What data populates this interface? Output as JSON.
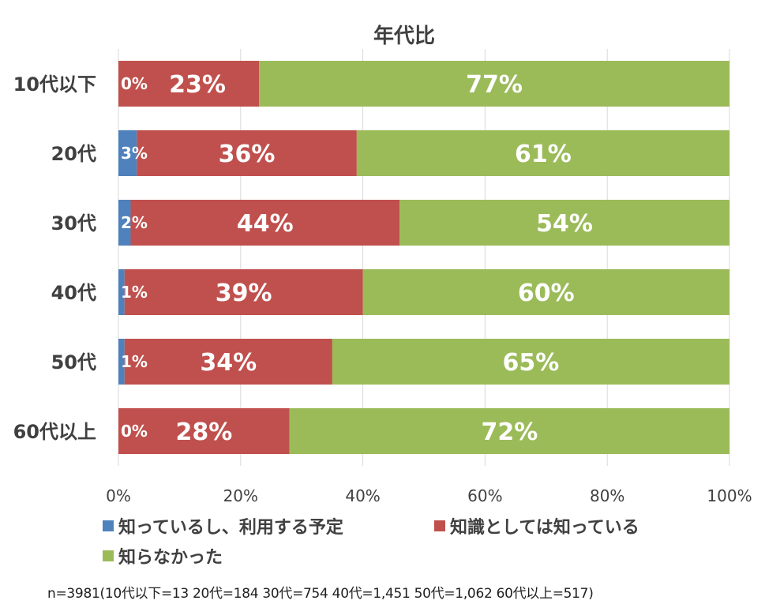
{
  "chart_data": {
    "type": "bar",
    "orientation": "horizontal",
    "stacked": "percent",
    "title": "年代比",
    "categories": [
      "10代以下",
      "20代",
      "30代",
      "40代",
      "50代",
      "60代以上"
    ],
    "series": [
      {
        "name": "知っているし、利用する予定",
        "color": "#4f81bd",
        "values": [
          0,
          3,
          2,
          1,
          1,
          0
        ]
      },
      {
        "name": "知識としては知っている",
        "color": "#c0504d",
        "values": [
          23,
          36,
          44,
          39,
          34,
          28
        ]
      },
      {
        "name": "知らなかった",
        "color": "#9bbb59",
        "values": [
          77,
          61,
          54,
          60,
          65,
          72
        ]
      }
    ],
    "xticks": [
      "0%",
      "20%",
      "40%",
      "60%",
      "80%",
      "100%"
    ],
    "xlim": [
      0,
      100
    ],
    "grid": true,
    "legend_position": "bottom"
  },
  "note": "n=3981(10代以下=13 20代=184 30代=754 40代=1,451 50代=1,062 60代以上=517)"
}
